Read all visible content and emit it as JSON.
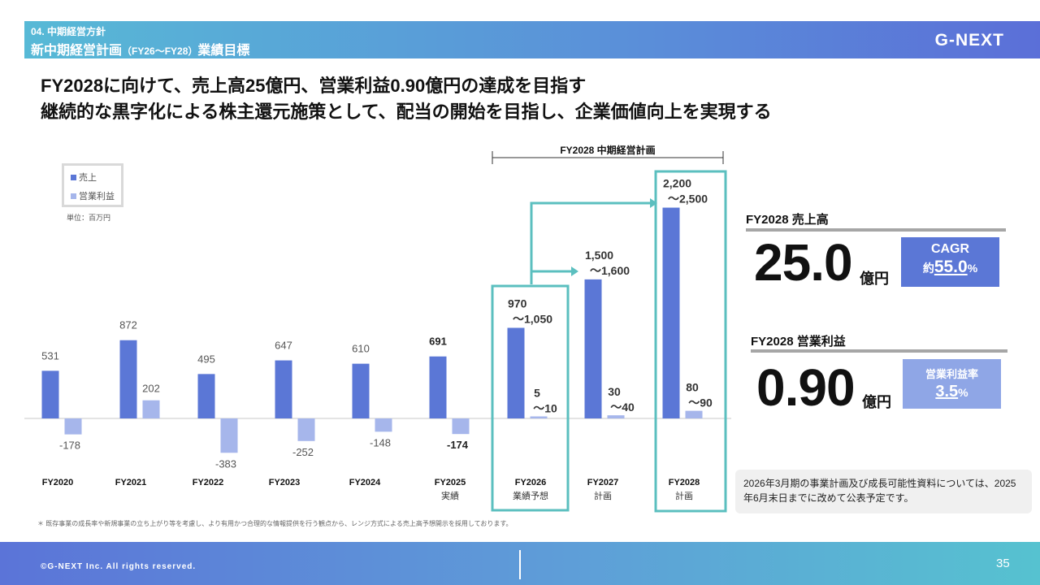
{
  "header": {
    "section": "04. 中期経営方針",
    "title_main": "新中期経営計画",
    "title_small": "（FY26〜FY28）",
    "title_end": "業績目標",
    "logo": "G-NEXT"
  },
  "headlines": [
    "FY2028に向けて、売上高25億円、営業利益0.90億円の達成を目指す",
    "継続的な黒字化による株主還元施策として、配当の開始を目指し、企業価値向上を実現する"
  ],
  "legend": {
    "sales": "売上",
    "op_profit": "営業利益"
  },
  "unit": "単位：百万円",
  "plan_range_label": "FY2028 中期経営計画",
  "colors": {
    "sales": "#5b77d6",
    "op_profit": "#a6b6eb",
    "highlight": "#5bbfbf",
    "kpi_box": "#5b77d6",
    "kpi_box_light": "#8fa6e6"
  },
  "chart_data": {
    "type": "bar",
    "categories": [
      "FY2020",
      "FY2021",
      "FY2022",
      "FY2023",
      "FY2024",
      "FY2025",
      "FY2026",
      "FY2027",
      "FY2028"
    ],
    "sublabels": [
      "",
      "",
      "",
      "",
      "",
      "実績",
      "業績予想",
      "計画",
      "計画"
    ],
    "series": [
      {
        "name": "売上",
        "values": [
          531,
          872,
          495,
          647,
          610,
          691,
          1010,
          1550,
          2350
        ],
        "labels": [
          "531",
          "872",
          "495",
          "647",
          "610",
          "691",
          "970\n〜1,050",
          "1,500\n〜1,600",
          "2,200\n〜2,500"
        ]
      },
      {
        "name": "営業利益",
        "values": [
          -178,
          202,
          -383,
          -252,
          -148,
          -174,
          7.5,
          35,
          85
        ],
        "labels": [
          "-178",
          "202",
          "-383",
          "-252",
          "-148",
          "-174",
          "5\n〜10",
          "30\n〜40",
          "80\n〜90"
        ]
      }
    ],
    "ylabel": "",
    "xlabel": ""
  },
  "kpi_sales": {
    "title": "FY2028 売上高",
    "value": "25.0",
    "unit": "億円",
    "box_label": "CAGR",
    "box_prefix": "約",
    "box_value": "55.0",
    "box_suffix": "%"
  },
  "kpi_op": {
    "title": "FY2028 営業利益",
    "value": "0.90",
    "unit": "億円",
    "box_label": "営業利益率",
    "box_value": "3.5",
    "box_suffix": "%"
  },
  "note": "2026年3月期の事業計画及び成長可能性資料については、2025年6月末日までに改めて公表予定です。",
  "footnote": "＊ 既存事業の成長率や新規事業の立ち上がり等を考慮し、より有用かつ合理的な情報提供を行う観点から、レンジ方式による売上高予想開示を採用しております。",
  "footer": {
    "copyright": "©G-NEXT Inc. All rights reserved.",
    "page": "35"
  }
}
